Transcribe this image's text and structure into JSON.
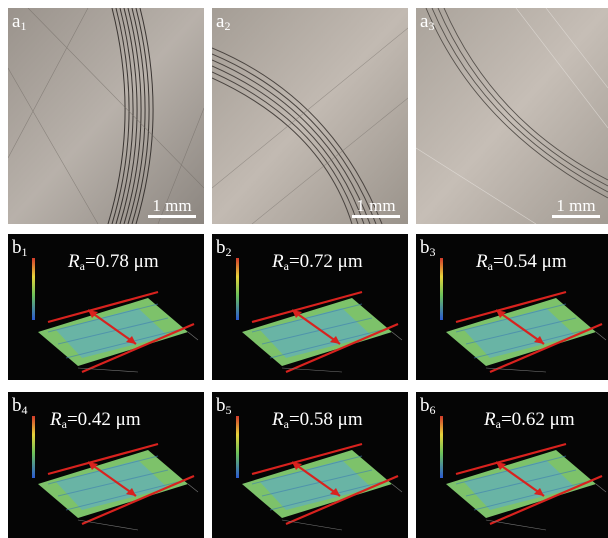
{
  "photos": [
    {
      "label": "a",
      "sub": "1",
      "scale": "1 mm"
    },
    {
      "label": "a",
      "sub": "2",
      "scale": "1 mm"
    },
    {
      "label": "a",
      "sub": "3",
      "scale": "1 mm"
    }
  ],
  "surfaces": [
    {
      "label": "b",
      "sub": "1",
      "ra_symbol": "R",
      "ra_sub": "a",
      "ra_value": "=0.78 μm"
    },
    {
      "label": "b",
      "sub": "2",
      "ra_symbol": "R",
      "ra_sub": "a",
      "ra_value": "=0.72 μm"
    },
    {
      "label": "b",
      "sub": "3",
      "ra_symbol": "R",
      "ra_sub": "a",
      "ra_value": "=0.54 μm"
    },
    {
      "label": "b",
      "sub": "4",
      "ra_symbol": "R",
      "ra_sub": "a",
      "ra_value": "=0.42 μm"
    },
    {
      "label": "b",
      "sub": "5",
      "ra_symbol": "R",
      "ra_sub": "a",
      "ra_value": "=0.58 μm"
    },
    {
      "label": "b",
      "sub": "6",
      "ra_symbol": "R",
      "ra_sub": "a",
      "ra_value": "=0.62 μm"
    }
  ],
  "colors": {
    "arrow": "#d8221e",
    "surface_green": "#7dc26a",
    "surface_blue": "#5aa9d6",
    "panel_bg": "#050505"
  }
}
